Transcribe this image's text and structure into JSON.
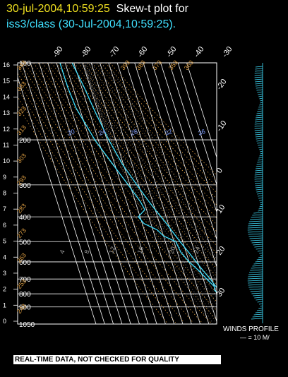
{
  "header": {
    "datetime": "30-jul-2004,10:59:25",
    "plot_title": "Skew-t plot for",
    "source": "iss3/class (30-Jul-2004,10:59:25)."
  },
  "footer": {
    "wind_label": "WINDS PROFILE",
    "wind_scale": "— = 10 M/",
    "disclaimer": "REAL-TIME DATA, NOT CHECKED FOR QUALITY"
  },
  "colors": {
    "background": "#000000",
    "title_yellow": "#f0e020",
    "title_cyan": "#40e0ff",
    "trace": "#40e0ff",
    "grid": "#ffffff",
    "theta_labels": "#d89a40",
    "theta_e_labels": "#a0a0a0",
    "mixing_labels": "#80a0ff"
  },
  "chart_data": {
    "type": "line",
    "pressure_ticks": [
      "100",
      "200",
      "300",
      "400",
      "500",
      "600",
      "700",
      "800",
      "900",
      "1050"
    ],
    "height_km_ticks": [
      "16",
      "15",
      "14",
      "13",
      "12",
      "11",
      "10",
      "9",
      "8",
      "7",
      "6",
      "5",
      "4",
      "3",
      "2",
      "1",
      "0"
    ],
    "temperature_ticks_top": [
      "-90",
      "-80",
      "-70",
      "-60",
      "-50",
      "-40",
      "-30"
    ],
    "temperature_ticks_right": [
      "-20",
      "-10",
      "0",
      "10",
      "20",
      "30"
    ],
    "theta_labels": [
      "343",
      "333",
      "323",
      "313",
      "303",
      "293",
      "283",
      "273",
      "263",
      "253",
      "243",
      "393",
      "383",
      "373",
      "353",
      "363"
    ],
    "mixing_ratio_labels": [
      "20",
      "24",
      "28",
      "32",
      "36"
    ],
    "theta_e_labels": [
      "4",
      "8",
      "12",
      "16",
      "20",
      "24"
    ],
    "series": [
      {
        "values_p_hPa": [
          1000,
          975,
          950,
          925,
          900,
          875,
          850,
          825,
          800,
          775,
          750,
          700,
          650,
          600,
          550,
          500,
          475,
          450,
          425,
          400,
          375,
          350,
          300,
          250,
          200,
          150,
          125,
          100
        ],
        "values_T_C": [
          31,
          29,
          27,
          24,
          22,
          20,
          19,
          17,
          15,
          14,
          12,
          8,
          3,
          -2,
          -7,
          -13,
          -16,
          -19,
          -22,
          -26,
          -30,
          -34,
          -42,
          -51,
          -58,
          -64,
          -67,
          -72
        ]
      },
      {
        "values_p_hPa": [
          1000,
          975,
          950,
          925,
          900,
          875,
          850,
          825,
          800,
          775,
          750,
          700,
          650,
          600,
          550,
          500,
          475,
          450,
          425,
          400,
          375,
          350,
          300,
          250,
          200,
          150,
          125,
          100
        ],
        "values_T_C": [
          25,
          21,
          19,
          18,
          19,
          17,
          14,
          12,
          12,
          9,
          10,
          4,
          -2,
          -10,
          -16,
          -18,
          -30,
          -35,
          -48,
          -52,
          -42,
          -44,
          -52,
          -62,
          -74,
          -84,
          -86,
          -86
        ]
      }
    ]
  }
}
